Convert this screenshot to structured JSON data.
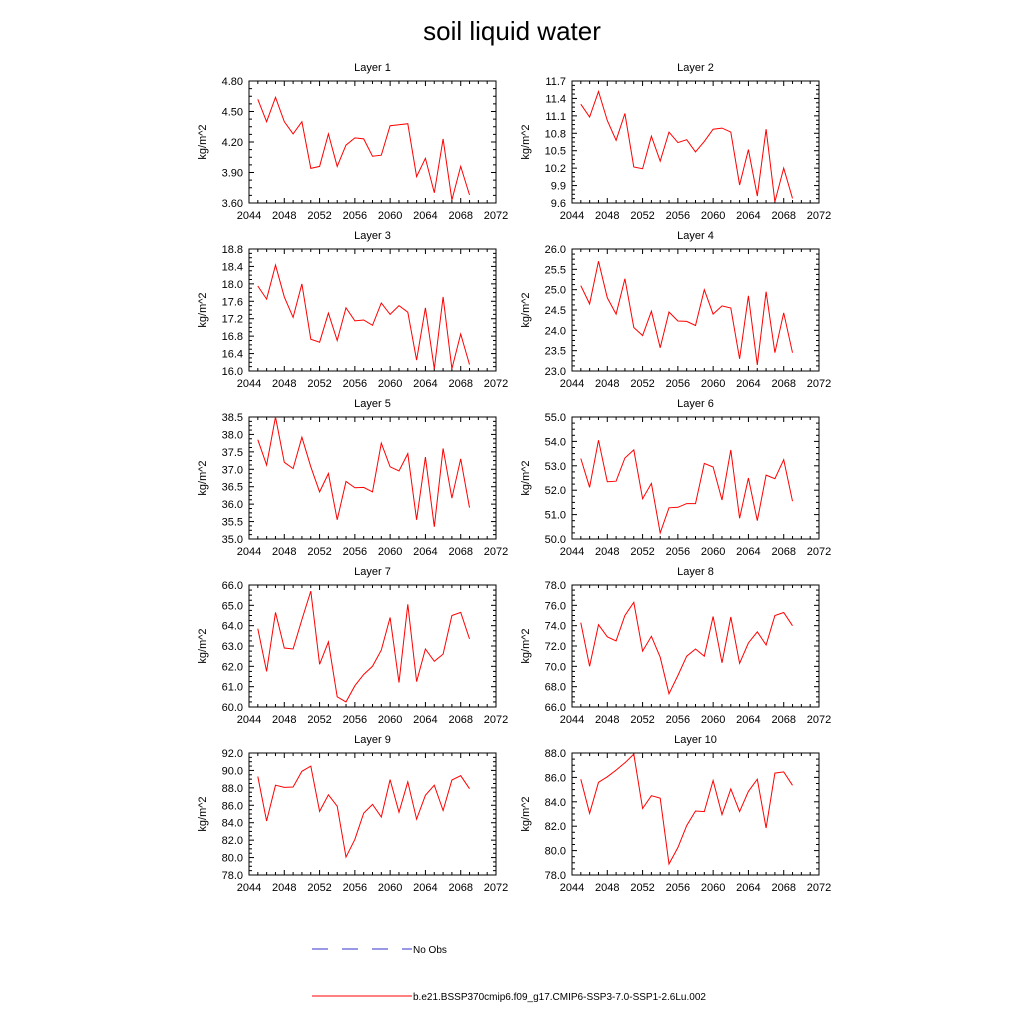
{
  "figure": {
    "title": "soil liquid water",
    "legend": [
      {
        "label": "No Obs",
        "color": "#3333cc",
        "dash": "dashed"
      },
      {
        "label": "b.e21.BSSP370cmip6.f09_g17.CMIP6-SSP3-7.0-SSP1-2.6Lu.002",
        "color": "#ff0000",
        "dash": "solid"
      }
    ],
    "legend_position": "bottom-center"
  },
  "chart_data": [
    {
      "type": "line",
      "title": "Layer 1",
      "ylabel": "kg/m^2",
      "xlabel": "",
      "xlim": [
        2044,
        2072
      ],
      "xticks": [
        2044,
        2048,
        2052,
        2056,
        2060,
        2064,
        2068,
        2072
      ],
      "ylim": [
        3.6,
        4.8
      ],
      "yticks": [
        "3.60",
        "3.90",
        "4.20",
        "4.50",
        "4.80"
      ],
      "grid": false,
      "x": [
        2045,
        2046,
        2047,
        2048,
        2049,
        2050,
        2051,
        2052,
        2053,
        2054,
        2055,
        2056,
        2057,
        2058,
        2059,
        2060,
        2061,
        2062,
        2063,
        2064,
        2065,
        2066,
        2067,
        2068,
        2069
      ],
      "series": [
        {
          "color": "#ff0000",
          "values": [
            4.62,
            4.4,
            4.64,
            4.4,
            4.28,
            4.4,
            3.94,
            3.96,
            4.28,
            3.96,
            4.17,
            4.24,
            4.23,
            4.06,
            4.07,
            4.36,
            4.37,
            4.38,
            3.86,
            4.04,
            3.7,
            4.23,
            3.63,
            3.96,
            3.68
          ]
        }
      ]
    },
    {
      "type": "line",
      "title": "Layer 2",
      "ylabel": "kg/m^2",
      "xlabel": "",
      "xlim": [
        2044,
        2072
      ],
      "xticks": [
        2044,
        2048,
        2052,
        2056,
        2060,
        2064,
        2068,
        2072
      ],
      "ylim": [
        9.6,
        11.7
      ],
      "yticks": [
        "9.6",
        "9.9",
        "10.2",
        "10.5",
        "10.8",
        "11.1",
        "11.4",
        "11.7"
      ],
      "grid": false,
      "x": [
        2045,
        2046,
        2047,
        2048,
        2049,
        2050,
        2051,
        2052,
        2053,
        2054,
        2055,
        2056,
        2057,
        2058,
        2059,
        2060,
        2061,
        2062,
        2063,
        2064,
        2065,
        2066,
        2067,
        2068,
        2069
      ],
      "series": [
        {
          "color": "#ff0000",
          "values": [
            11.3,
            11.08,
            11.52,
            11.02,
            10.68,
            11.14,
            10.22,
            10.19,
            10.75,
            10.32,
            10.82,
            10.64,
            10.69,
            10.48,
            10.66,
            10.87,
            10.89,
            10.82,
            9.91,
            10.52,
            9.72,
            10.87,
            9.62,
            10.2,
            9.68
          ]
        }
      ]
    },
    {
      "type": "line",
      "title": "Layer 3",
      "ylabel": "kg/m^2",
      "xlabel": "",
      "xlim": [
        2044,
        2072
      ],
      "xticks": [
        2044,
        2048,
        2052,
        2056,
        2060,
        2064,
        2068,
        2072
      ],
      "ylim": [
        16.0,
        18.8
      ],
      "yticks": [
        "16.0",
        "16.4",
        "16.8",
        "17.2",
        "17.6",
        "18.0",
        "18.4",
        "18.8"
      ],
      "grid": false,
      "x": [
        2045,
        2046,
        2047,
        2048,
        2049,
        2050,
        2051,
        2052,
        2053,
        2054,
        2055,
        2056,
        2057,
        2058,
        2059,
        2060,
        2061,
        2062,
        2063,
        2064,
        2065,
        2066,
        2067,
        2068,
        2069
      ],
      "series": [
        {
          "color": "#ff0000",
          "values": [
            17.95,
            17.65,
            18.43,
            17.7,
            17.23,
            18.0,
            16.73,
            16.66,
            17.33,
            16.7,
            17.45,
            17.15,
            17.17,
            17.05,
            17.56,
            17.3,
            17.5,
            17.35,
            16.25,
            17.45,
            16.05,
            17.7,
            16.05,
            16.85,
            16.15
          ]
        }
      ]
    },
    {
      "type": "line",
      "title": "Layer 4",
      "ylabel": "kg/m^2",
      "xlabel": "",
      "xlim": [
        2044,
        2072
      ],
      "xticks": [
        2044,
        2048,
        2052,
        2056,
        2060,
        2064,
        2068,
        2072
      ],
      "ylim": [
        23.0,
        26.0
      ],
      "yticks": [
        "23.0",
        "23.5",
        "24.0",
        "24.5",
        "25.0",
        "25.5",
        "26.0"
      ],
      "grid": false,
      "x": [
        2045,
        2046,
        2047,
        2048,
        2049,
        2050,
        2051,
        2052,
        2053,
        2054,
        2055,
        2056,
        2057,
        2058,
        2059,
        2060,
        2061,
        2062,
        2063,
        2064,
        2065,
        2066,
        2067,
        2068,
        2069
      ],
      "series": [
        {
          "color": "#ff0000",
          "values": [
            25.1,
            24.65,
            25.7,
            24.8,
            24.4,
            25.27,
            24.07,
            23.87,
            24.47,
            23.57,
            24.45,
            24.23,
            24.22,
            24.12,
            25.0,
            24.4,
            24.6,
            24.55,
            23.3,
            24.85,
            23.15,
            24.95,
            23.45,
            24.43,
            23.45
          ]
        }
      ]
    },
    {
      "type": "line",
      "title": "Layer 5",
      "ylabel": "kg/m^2",
      "xlabel": "",
      "xlim": [
        2044,
        2072
      ],
      "xticks": [
        2044,
        2048,
        2052,
        2056,
        2060,
        2064,
        2068,
        2072
      ],
      "ylim": [
        35.0,
        38.5
      ],
      "yticks": [
        "35.0",
        "35.5",
        "36.0",
        "36.5",
        "37.0",
        "37.5",
        "38.0",
        "38.5"
      ],
      "grid": false,
      "x": [
        2045,
        2046,
        2047,
        2048,
        2049,
        2050,
        2051,
        2052,
        2053,
        2054,
        2055,
        2056,
        2057,
        2058,
        2059,
        2060,
        2061,
        2062,
        2063,
        2064,
        2065,
        2066,
        2067,
        2068,
        2069
      ],
      "series": [
        {
          "color": "#ff0000",
          "values": [
            37.85,
            37.12,
            38.5,
            37.2,
            37.02,
            37.92,
            37.07,
            36.35,
            36.88,
            35.55,
            36.65,
            36.47,
            36.48,
            36.35,
            37.75,
            37.07,
            36.95,
            37.45,
            35.55,
            37.35,
            35.35,
            37.6,
            36.17,
            37.3,
            35.9
          ]
        }
      ]
    },
    {
      "type": "line",
      "title": "Layer 6",
      "ylabel": "kg/m^2",
      "xlabel": "",
      "xlim": [
        2044,
        2072
      ],
      "xticks": [
        2044,
        2048,
        2052,
        2056,
        2060,
        2064,
        2068,
        2072
      ],
      "ylim": [
        50.0,
        55.0
      ],
      "yticks": [
        "50.0",
        "51.0",
        "52.0",
        "53.0",
        "54.0",
        "55.0"
      ],
      "grid": false,
      "x": [
        2045,
        2046,
        2047,
        2048,
        2049,
        2050,
        2051,
        2052,
        2053,
        2054,
        2055,
        2056,
        2057,
        2058,
        2059,
        2060,
        2061,
        2062,
        2063,
        2064,
        2065,
        2066,
        2067,
        2068,
        2069
      ],
      "series": [
        {
          "color": "#ff0000",
          "values": [
            53.3,
            52.12,
            54.05,
            52.35,
            52.37,
            53.32,
            53.65,
            51.65,
            52.28,
            50.25,
            51.28,
            51.3,
            51.45,
            51.45,
            53.1,
            52.95,
            51.6,
            53.65,
            50.85,
            52.5,
            50.75,
            52.62,
            52.47,
            53.25,
            51.55
          ]
        }
      ]
    },
    {
      "type": "line",
      "title": "Layer 7",
      "ylabel": "kg/m^2",
      "xlabel": "",
      "xlim": [
        2044,
        2072
      ],
      "xticks": [
        2044,
        2048,
        2052,
        2056,
        2060,
        2064,
        2068,
        2072
      ],
      "ylim": [
        60.0,
        66.0
      ],
      "yticks": [
        "60.0",
        "61.0",
        "62.0",
        "63.0",
        "64.0",
        "65.0",
        "66.0"
      ],
      "grid": false,
      "x": [
        2045,
        2046,
        2047,
        2048,
        2049,
        2050,
        2051,
        2052,
        2053,
        2054,
        2055,
        2056,
        2057,
        2058,
        2059,
        2060,
        2061,
        2062,
        2063,
        2064,
        2065,
        2066,
        2067,
        2068,
        2069
      ],
      "series": [
        {
          "color": "#ff0000",
          "values": [
            63.85,
            61.75,
            64.65,
            62.9,
            62.85,
            64.3,
            65.7,
            62.1,
            63.2,
            60.5,
            60.25,
            61.05,
            61.6,
            62.0,
            62.8,
            64.4,
            61.2,
            65.05,
            61.25,
            62.85,
            62.25,
            62.6,
            64.5,
            64.65,
            63.35
          ]
        }
      ]
    },
    {
      "type": "line",
      "title": "Layer 8",
      "ylabel": "kg/m^2",
      "xlabel": "",
      "xlim": [
        2044,
        2072
      ],
      "xticks": [
        2044,
        2048,
        2052,
        2056,
        2060,
        2064,
        2068,
        2072
      ],
      "ylim": [
        66.0,
        78.0
      ],
      "yticks": [
        "66.0",
        "68.0",
        "70.0",
        "72.0",
        "74.0",
        "76.0",
        "78.0"
      ],
      "grid": false,
      "x": [
        2045,
        2046,
        2047,
        2048,
        2049,
        2050,
        2051,
        2052,
        2053,
        2054,
        2055,
        2056,
        2057,
        2058,
        2059,
        2060,
        2061,
        2062,
        2063,
        2064,
        2065,
        2066,
        2067,
        2068,
        2069
      ],
      "series": [
        {
          "color": "#ff0000",
          "values": [
            74.3,
            70.0,
            74.1,
            72.9,
            72.5,
            75.0,
            76.3,
            71.5,
            72.95,
            70.9,
            67.3,
            69.1,
            71.0,
            71.7,
            71.0,
            74.9,
            70.35,
            74.85,
            70.3,
            72.3,
            73.4,
            72.1,
            75.0,
            75.3,
            74.0
          ]
        }
      ]
    },
    {
      "type": "line",
      "title": "Layer 9",
      "ylabel": "kg/m^2",
      "xlabel": "",
      "xlim": [
        2044,
        2072
      ],
      "xticks": [
        2044,
        2048,
        2052,
        2056,
        2060,
        2064,
        2068,
        2072
      ],
      "ylim": [
        78.0,
        92.0
      ],
      "yticks": [
        "78.0",
        "80.0",
        "82.0",
        "84.0",
        "86.0",
        "88.0",
        "90.0",
        "92.0"
      ],
      "grid": false,
      "x": [
        2045,
        2046,
        2047,
        2048,
        2049,
        2050,
        2051,
        2052,
        2053,
        2054,
        2055,
        2056,
        2057,
        2058,
        2059,
        2060,
        2061,
        2062,
        2063,
        2064,
        2065,
        2066,
        2067,
        2068,
        2069
      ],
      "series": [
        {
          "color": "#ff0000",
          "values": [
            89.3,
            84.2,
            88.3,
            88.05,
            88.1,
            89.9,
            90.5,
            85.3,
            87.2,
            85.9,
            80.05,
            82.1,
            85.1,
            86.1,
            84.65,
            88.95,
            85.2,
            88.7,
            84.4,
            87.15,
            88.3,
            85.4,
            88.9,
            89.4,
            87.9
          ]
        }
      ]
    },
    {
      "type": "line",
      "title": "Layer 10",
      "ylabel": "kg/m^2",
      "xlabel": "",
      "xlim": [
        2044,
        2072
      ],
      "xticks": [
        2044,
        2048,
        2052,
        2056,
        2060,
        2064,
        2068,
        2072
      ],
      "ylim": [
        78.0,
        88.0
      ],
      "yticks": [
        "78.0",
        "80.0",
        "82.0",
        "84.0",
        "86.0",
        "88.0"
      ],
      "grid": false,
      "x": [
        2045,
        2046,
        2047,
        2048,
        2049,
        2050,
        2051,
        2052,
        2053,
        2054,
        2055,
        2056,
        2057,
        2058,
        2059,
        2060,
        2061,
        2062,
        2063,
        2064,
        2065,
        2066,
        2067,
        2068,
        2069
      ],
      "series": [
        {
          "color": "#ff0000",
          "values": [
            85.85,
            83.05,
            85.6,
            86.05,
            86.6,
            87.2,
            87.9,
            83.45,
            84.5,
            84.3,
            78.9,
            80.25,
            82.05,
            83.25,
            83.2,
            85.75,
            82.95,
            85.05,
            83.2,
            84.85,
            85.85,
            81.85,
            86.35,
            86.45,
            85.35
          ]
        }
      ]
    }
  ]
}
